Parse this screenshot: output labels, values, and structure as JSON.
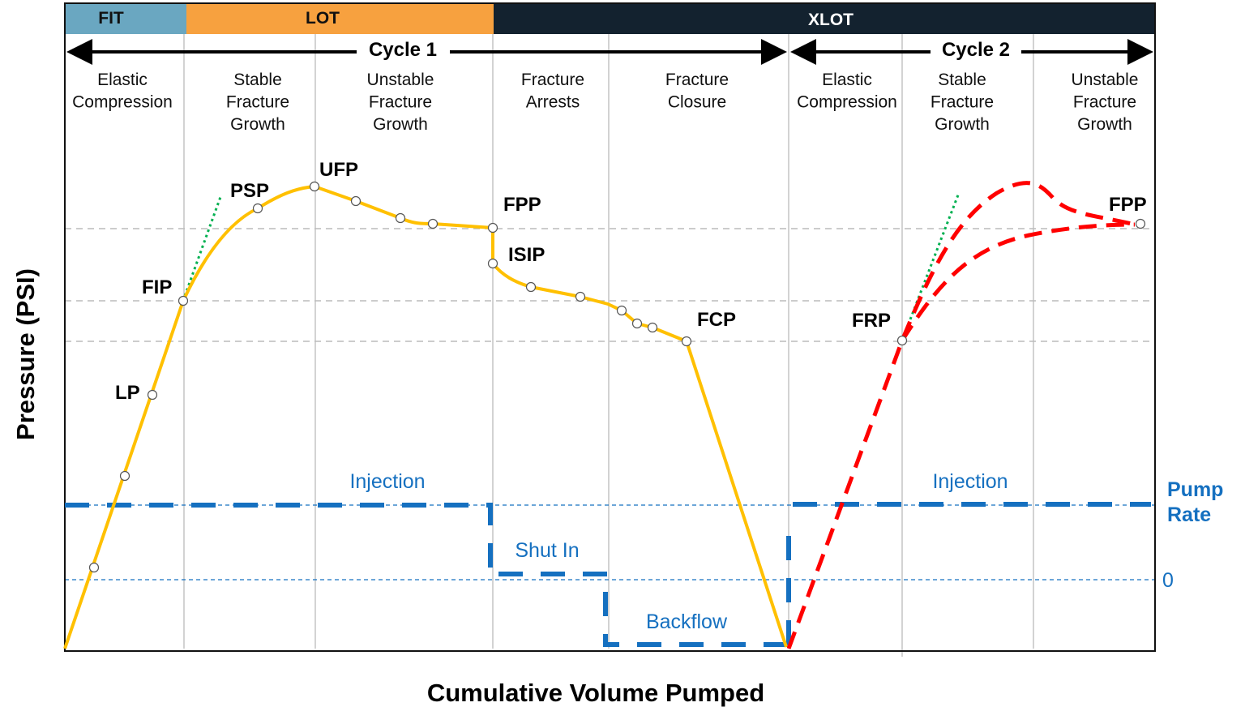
{
  "bands": {
    "fit": "FIT",
    "lot": "LOT",
    "xlot": "XLOT"
  },
  "colors": {
    "fit": "#6aa7c1",
    "lot": "#f7a13f",
    "xlot": "#13222f",
    "pressure": "#ffc000",
    "cycle2": "#ff0000",
    "pump": "#1570c0",
    "tangent": "#00b050"
  },
  "cycles": {
    "cycle1": "Cycle 1",
    "cycle2": "Cycle 2"
  },
  "phases": [
    [
      "Elastic",
      "Compression"
    ],
    [
      "Stable",
      "Fracture",
      "Growth"
    ],
    [
      "Unstable",
      "Fracture",
      "Growth"
    ],
    [
      "Fracture",
      "Arrests"
    ],
    [
      "Fracture",
      "Closure"
    ],
    [
      "Elastic",
      "Compression"
    ],
    [
      "Stable",
      "Fracture",
      "Growth"
    ],
    [
      "Unstable",
      "Fracture",
      "Growth"
    ]
  ],
  "points": {
    "lp": "LP",
    "fip": "FIP",
    "psp": "PSP",
    "ufp": "UFP",
    "fpp": "FPP",
    "isip": "ISIP",
    "fcp": "FCP",
    "frp": "FRP",
    "fpp2": "FPP"
  },
  "pump": {
    "injection1": "Injection",
    "shut_in": "Shut In",
    "backflow": "Backflow",
    "injection2": "Injection",
    "axis_line1": "Pump",
    "axis_line2": "Rate",
    "zero": "0"
  },
  "axes": {
    "y": "Pressure (PSI)",
    "x": "Cumulative Volume Pumped"
  }
}
